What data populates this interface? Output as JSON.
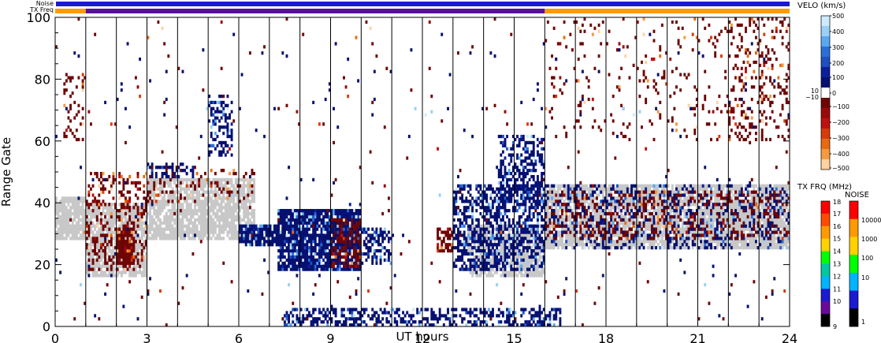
{
  "chart_data": {
    "type": "heatmap",
    "xlabel": "UT hours",
    "ylabel": "Range Gate",
    "xlim": [
      0,
      24
    ],
    "ylim": [
      0,
      100
    ],
    "x_ticks": [
      "0",
      "3",
      "6",
      "9",
      "12",
      "15",
      "18",
      "21",
      "24"
    ],
    "y_ticks": [
      "0",
      "20",
      "40",
      "60",
      "80",
      "100"
    ],
    "scan_boundaries_ut": [
      1.0,
      2.0,
      3.0,
      4.0,
      5.0,
      6.0,
      7.0,
      8.0,
      9.0,
      10.0,
      11.0,
      12.0,
      13.0,
      14.0,
      15.0,
      16.0,
      17.0,
      18.0,
      19.0,
      20.0,
      21.0,
      22.0,
      23.0
    ],
    "status_bars": {
      "noise_label": "Noise",
      "txfreq_label": "TX Freq",
      "noise_color": "#1a1ad2",
      "txfreq_segments": [
        {
          "from": 0.0,
          "to": 1.0,
          "color": "#ff9a00"
        },
        {
          "from": 1.0,
          "to": 16.0,
          "color": "#55119a"
        },
        {
          "from": 16.0,
          "to": 24.0,
          "color": "#ff9a00"
        }
      ]
    },
    "ground_scatter_color": "#c8c8c8",
    "scatter_regions": [
      {
        "kind": "ground",
        "x": [
          0.0,
          1.0
        ],
        "y": [
          28,
          42
        ],
        "density": 0.85
      },
      {
        "kind": "ground",
        "x": [
          1.0,
          3.0
        ],
        "y": [
          16,
          40
        ],
        "density": 0.8
      },
      {
        "kind": "ground",
        "x": [
          3.0,
          6.5
        ],
        "y": [
          28,
          48
        ],
        "density": 0.8
      },
      {
        "kind": "ground",
        "x": [
          16.0,
          24.0
        ],
        "y": [
          25,
          46
        ],
        "density": 0.85
      },
      {
        "kind": "ground",
        "x": [
          13.5,
          16.0
        ],
        "y": [
          16,
          33
        ],
        "density": 0.75
      },
      {
        "kind": "velocity",
        "sign": "neg",
        "x": [
          1.0,
          3.0
        ],
        "y": [
          18,
          50
        ],
        "density": 0.28
      },
      {
        "kind": "velocity",
        "sign": "neg",
        "x": [
          2.0,
          2.6
        ],
        "y": [
          20,
          32
        ],
        "density": 0.85
      },
      {
        "kind": "velocity",
        "sign": "neg",
        "x": [
          0.3,
          1.0
        ],
        "y": [
          60,
          82
        ],
        "density": 0.18
      },
      {
        "kind": "velocity",
        "sign": "neg",
        "x": [
          3.0,
          6.5
        ],
        "y": [
          40,
          52
        ],
        "density": 0.18
      },
      {
        "kind": "velocity",
        "sign": "pos",
        "x": [
          3.0,
          4.5
        ],
        "y": [
          48,
          53
        ],
        "density": 0.4
      },
      {
        "kind": "velocity",
        "sign": "pos",
        "x": [
          5.0,
          5.8
        ],
        "y": [
          55,
          75
        ],
        "density": 0.45
      },
      {
        "kind": "velocity",
        "sign": "pos",
        "x": [
          6.0,
          7.5
        ],
        "y": [
          26,
          33
        ],
        "density": 0.85
      },
      {
        "kind": "velocity",
        "sign": "pos",
        "x": [
          7.3,
          10.0
        ],
        "y": [
          18,
          38
        ],
        "density": 0.9
      },
      {
        "kind": "velocity",
        "sign": "neg",
        "x": [
          9.0,
          10.0
        ],
        "y": [
          19,
          35
        ],
        "density": 0.5
      },
      {
        "kind": "velocity",
        "sign": "pos",
        "x": [
          10.0,
          11.0
        ],
        "y": [
          20,
          32
        ],
        "density": 0.5
      },
      {
        "kind": "velocity",
        "sign": "neg",
        "x": [
          12.5,
          13.0
        ],
        "y": [
          24,
          32
        ],
        "density": 0.6
      },
      {
        "kind": "velocity",
        "sign": "pos",
        "x": [
          13.0,
          16.0
        ],
        "y": [
          18,
          46
        ],
        "density": 0.55
      },
      {
        "kind": "velocity",
        "sign": "pos",
        "x": [
          14.5,
          16.0
        ],
        "y": [
          40,
          62
        ],
        "density": 0.45
      },
      {
        "kind": "velocity",
        "sign": "pos",
        "x": [
          7.5,
          16.5
        ],
        "y": [
          0,
          6
        ],
        "density": 0.45
      },
      {
        "kind": "velocity",
        "sign": "pos",
        "x": [
          16.0,
          24.0
        ],
        "y": [
          25,
          46
        ],
        "density": 0.25
      },
      {
        "kind": "velocity",
        "sign": "neg",
        "x": [
          16.0,
          24.0
        ],
        "y": [
          28,
          44
        ],
        "density": 0.22
      },
      {
        "kind": "velocity",
        "sign": "neg",
        "x": [
          16.0,
          24.0
        ],
        "y": [
          60,
          100
        ],
        "density": 0.05
      },
      {
        "kind": "velocity",
        "sign": "neg",
        "x": [
          22.0,
          24.0
        ],
        "y": [
          60,
          100
        ],
        "density": 0.14
      },
      {
        "kind": "velocity",
        "sign": "mix",
        "x": [
          0.0,
          24.0
        ],
        "y": [
          0,
          100
        ],
        "density": 0.012
      }
    ],
    "velocity_colorbar": {
      "title": "VELO (km/s)",
      "ticks": [
        "500",
        "400",
        "300",
        "200",
        "100",
        "10",
        "0",
        "−10",
        "−100",
        "−200",
        "−300",
        "−400",
        "−500"
      ],
      "colors": [
        "#cfeaff",
        "#9ad0f5",
        "#5aa8ee",
        "#2a6fd8",
        "#1f4fc0",
        "#0b1f9a",
        "#061070",
        "#ffffff",
        "#6e0505",
        "#9a0a0a",
        "#c01010",
        "#d83a0a",
        "#e86a10",
        "#f59a40",
        "#ffd2a0"
      ]
    },
    "freq_colorbar": {
      "title": "TX FRQ (MHz)",
      "ticks": [
        "18",
        "17",
        "16",
        "15",
        "14",
        "13",
        "12",
        "11",
        "10",
        "9"
      ],
      "colors": [
        "#ff0000",
        "#ff4a00",
        "#ff9a00",
        "#ffd200",
        "#00ff00",
        "#00c8a0",
        "#00b4ff",
        "#1a1ad2",
        "#6a0a9a",
        "#000000"
      ]
    },
    "noise_colorbar": {
      "title": "NOISE",
      "ticks": [
        "10000",
        "1000",
        "100",
        "10",
        "1"
      ],
      "colors": [
        "#ff0000",
        "#ff9a00",
        "#ffd200",
        "#00ff00",
        "#00b4ff",
        "#1a1ad2",
        "#000000"
      ]
    }
  }
}
